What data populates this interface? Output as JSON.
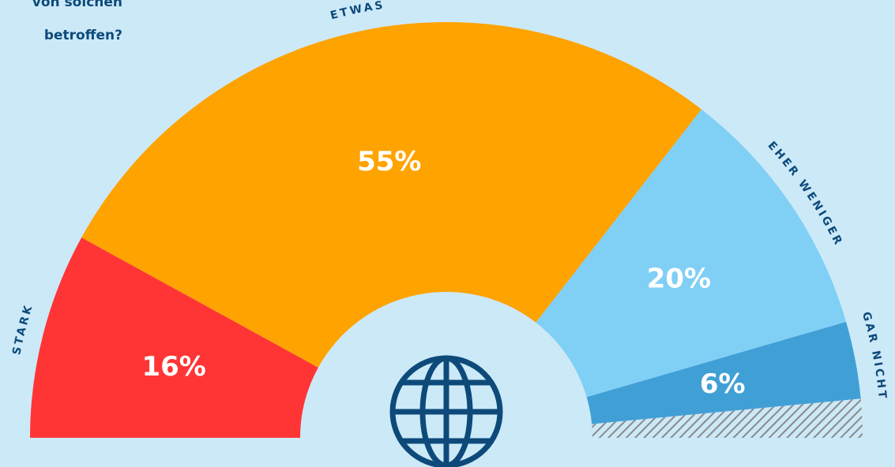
{
  "chart_data": {
    "type": "semi-donut",
    "title_lines": [
      "von solchen",
      "betroffen?"
    ],
    "categories": [
      "STARK",
      "ETWAS",
      "EHER WENIGER",
      "GAR NICHT"
    ],
    "values": [
      16,
      55,
      20,
      6
    ],
    "value_labels": [
      "16%",
      "55%",
      "20%",
      "6%"
    ],
    "colors": [
      "#ff3535",
      "#ffa300",
      "#80cff5",
      "#40a0d6"
    ],
    "ylim": [
      0,
      100
    ]
  }
}
